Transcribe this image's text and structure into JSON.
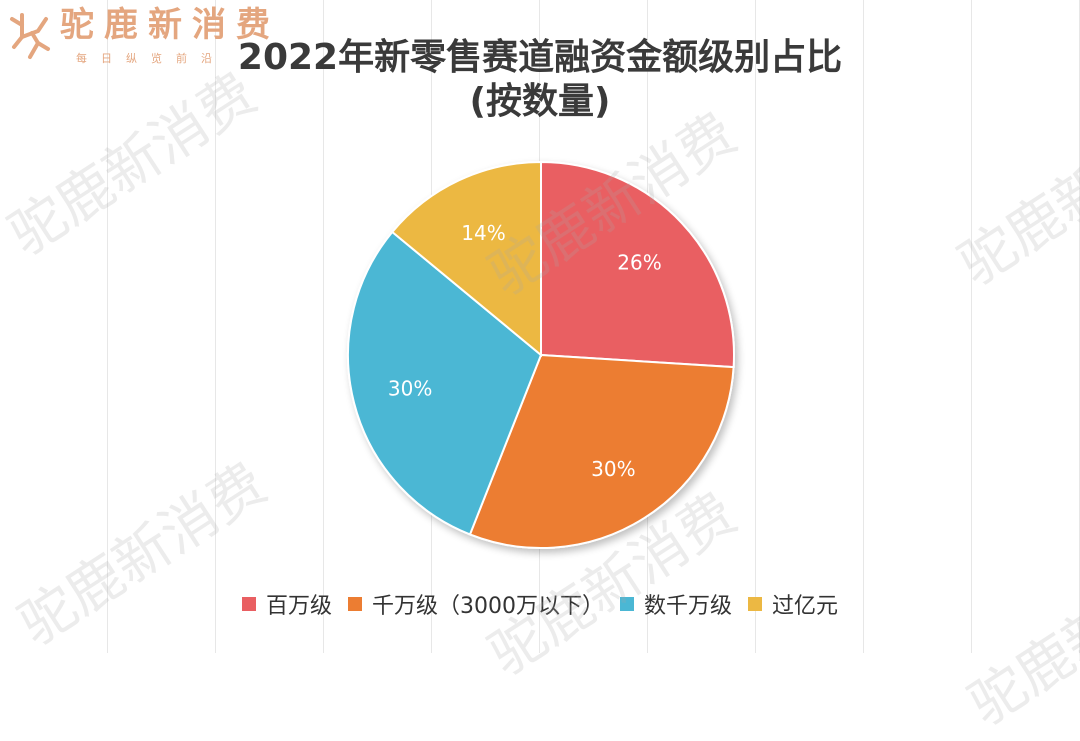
{
  "brand": {
    "name": "驼鹿新消费",
    "slogan": "每日纵览前沿"
  },
  "watermark_text": "驼鹿新消费",
  "chart_data": {
    "type": "pie",
    "title": "2022年新零售赛道融资金额级别占比",
    "subtitle": "(按数量)",
    "legend_position": "bottom",
    "slices": [
      {
        "name": "百万级",
        "value": 26,
        "label": "26%",
        "color": "#e95f62"
      },
      {
        "name": "千万级（3000万以下）",
        "value": 30,
        "label": "30%",
        "color": "#ec7d32"
      },
      {
        "name": "数千万级",
        "value": 30,
        "label": "30%",
        "color": "#4bb7d4"
      },
      {
        "name": "过亿元",
        "value": 14,
        "label": "14%",
        "color": "#ecb843"
      }
    ]
  }
}
